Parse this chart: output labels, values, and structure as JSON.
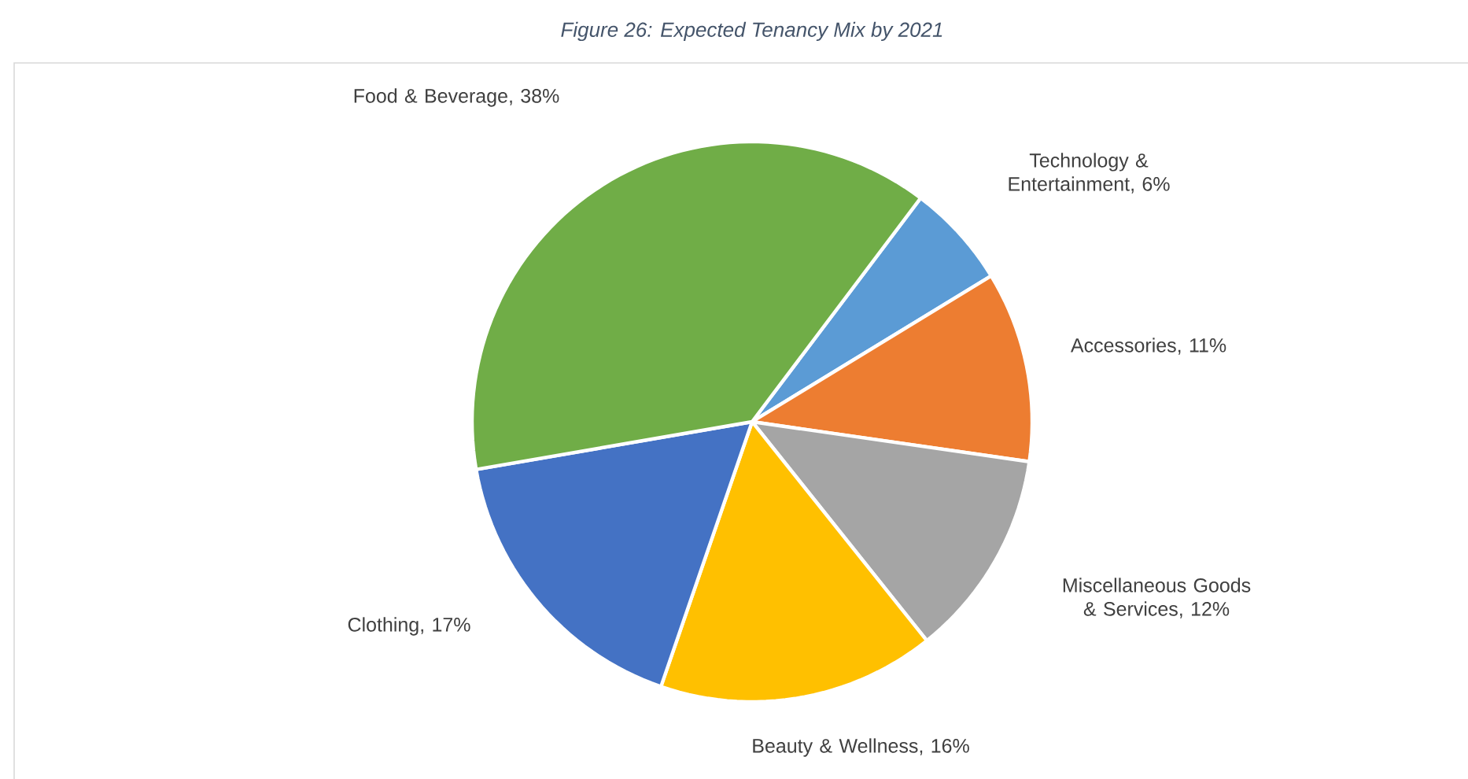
{
  "chart_data": {
    "type": "pie",
    "title": "Figure 26: Expected Tenancy Mix by 2021",
    "categories": [
      "Technology & Entertainment",
      "Accessories",
      "Miscellaneous Goods & Services",
      "Beauty & Wellness",
      "Clothing",
      "Food & Beverage"
    ],
    "values": [
      6,
      11,
      12,
      16,
      17,
      38
    ],
    "value_labels": [
      ", 6%",
      ", 11%",
      ", 12%",
      ", 16%",
      ", 17%",
      ", 38%"
    ],
    "colors": [
      "#5b9bd5",
      "#ed7d31",
      "#a5a5a5",
      "#ffc000",
      "#4472c4",
      "#70ad47"
    ]
  }
}
